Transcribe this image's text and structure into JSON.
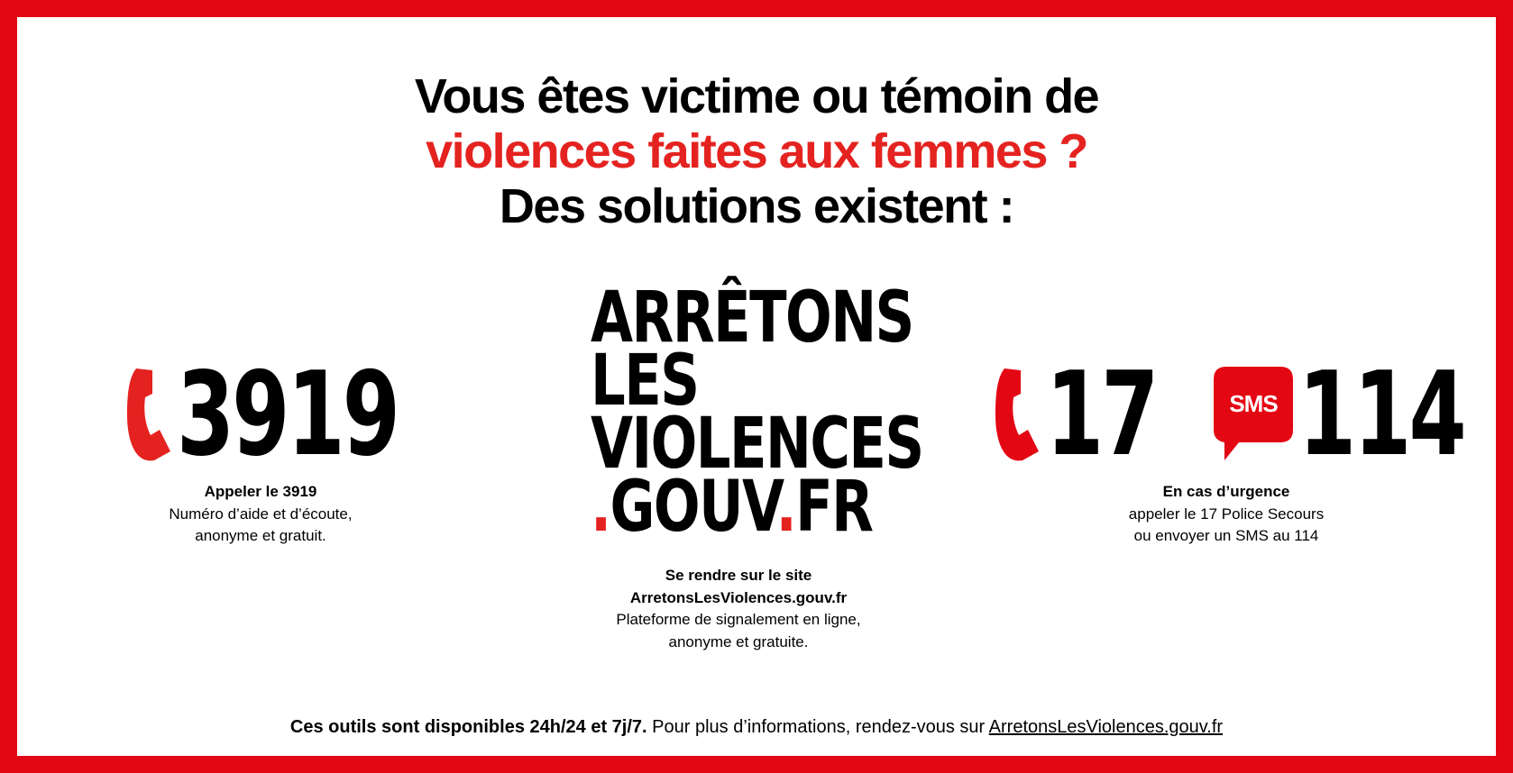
{
  "colors": {
    "border": "#e30613",
    "accent": "#e42320",
    "text": "#000000",
    "background": "#ffffff"
  },
  "headline": {
    "line1": "Vous êtes victime ou témoin de",
    "line2": "violences faites aux femmes ?",
    "line3": "Des solutions existent :"
  },
  "logo": {
    "line1": "ARRÊTONS",
    "line2": "LES",
    "line3": "VIOLENCES",
    "line4_dot": ".",
    "line4_a": "GOUV",
    "line4_dot2": ".",
    "line4_b": "FR"
  },
  "left": {
    "icon": "phone-icon",
    "number": "3919",
    "title": "Appeler le 3919",
    "line1": "Numéro d’aide et d’écoute,",
    "line2": "anonyme et gratuit."
  },
  "center": {
    "title": "Se rendre sur le site",
    "site": "ArretonsLesViolences.gouv.fr",
    "line1": "Plateforme de signalement en ligne,",
    "line2": "anonyme et gratuite."
  },
  "right": {
    "phone_icon": "phone-icon",
    "number1": "17",
    "sms_icon": "sms-bubble-icon",
    "sms_label": "SMS",
    "number2": "114",
    "title": "En cas d’urgence",
    "line1": "appeler le 17 Police Secours",
    "line2": "ou envoyer un SMS au 114"
  },
  "footer": {
    "part1": "Ces outils sont disponibles ",
    "part2": "24h/24",
    "part3": " et ",
    "part4": "7j/7.",
    "part5": " Pour plus d’informations, rendez-vous sur ",
    "link": "ArretonsLesViolences.gouv.fr"
  }
}
